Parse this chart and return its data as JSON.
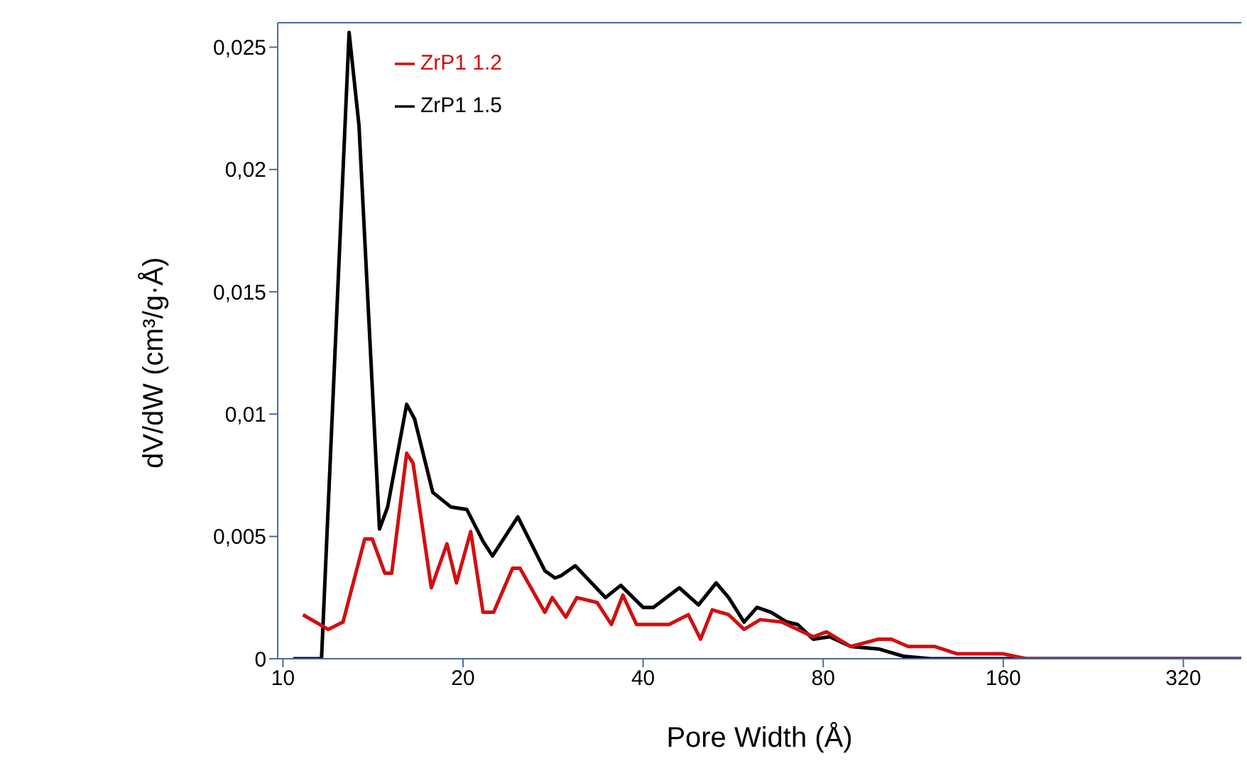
{
  "chart_data": {
    "type": "line",
    "xlabel": "Pore Width (Å)",
    "ylabel": "dV/dW (cm³/g·Å)",
    "log": "x",
    "grid": false,
    "legend": "top left",
    "marker": "none",
    "line_style": "solid",
    "xlim": [
      9.8,
      400
    ],
    "xticks": [
      10,
      20,
      40,
      80,
      160,
      320
    ],
    "ylim": [
      0,
      0.026
    ],
    "yticks": [
      0,
      {
        "value": 0.005,
        "label": "0,005"
      },
      {
        "value": 0.01,
        "label": "0,01"
      },
      {
        "value": 0.015,
        "label": "0,015"
      },
      {
        "value": 0.02,
        "label": "0,02"
      },
      {
        "value": 0.025,
        "label": "0,025"
      }
    ],
    "series": [
      {
        "name": "ZrP1 1.5",
        "color": "#000000",
        "x": [
          10.4,
          11.6,
          12.9,
          13.4,
          14.5,
          14.96,
          16.1,
          16.6,
          17.8,
          19.1,
          20.3,
          21.6,
          22.4,
          24.7,
          27.4,
          28.5,
          29.2,
          30.8,
          34.6,
          36.7,
          40,
          41.6,
          46,
          49.5,
          53,
          55.6,
          59,
          62,
          65.5,
          69.6,
          72.5,
          77,
          82,
          89,
          99,
          109,
          121,
          200,
          400
        ],
        "values": [
          0,
          0,
          0.0256,
          0.0218,
          0.0053,
          0.0062,
          0.0104,
          0.0098,
          0.0068,
          0.0062,
          0.0061,
          0.0048,
          0.0042,
          0.0058,
          0.0036,
          0.0033,
          0.0034,
          0.0038,
          0.0025,
          0.003,
          0.0021,
          0.0021,
          0.0029,
          0.0022,
          0.0031,
          0.0025,
          0.0015,
          0.0021,
          0.0019,
          0.0015,
          0.0014,
          0.0008,
          0.0009,
          0.0005,
          0.0004,
          0.0001,
          0,
          0,
          0
        ]
      },
      {
        "name": "ZrP1 1.2",
        "color": "#d01010",
        "x": [
          10.8,
          11.9,
          12.6,
          13.7,
          14.1,
          14.8,
          15.2,
          16.1,
          16.5,
          17.7,
          18.8,
          19.5,
          20.6,
          21.6,
          22.5,
          24.2,
          24.9,
          27.4,
          28.2,
          29.7,
          31,
          33.5,
          35.4,
          37,
          39,
          44.2,
          47.6,
          49.9,
          52.2,
          55.6,
          59,
          62.8,
          68.2,
          77,
          81,
          89,
          99,
          104,
          111,
          123,
          134,
          160,
          175,
          400
        ],
        "values": [
          0.0018,
          0.0012,
          0.0015,
          0.0049,
          0.0049,
          0.0035,
          0.0035,
          0.0084,
          0.008,
          0.0029,
          0.0047,
          0.0031,
          0.0052,
          0.0019,
          0.0019,
          0.0037,
          0.0037,
          0.0019,
          0.0025,
          0.0017,
          0.0025,
          0.0023,
          0.0014,
          0.0026,
          0.0014,
          0.0014,
          0.0018,
          0.0008,
          0.002,
          0.0018,
          0.0012,
          0.0016,
          0.0015,
          0.0009,
          0.0011,
          0.0005,
          0.0008,
          0.0008,
          0.0005,
          0.0005,
          0.0002,
          0.0002,
          0,
          0
        ]
      }
    ]
  }
}
